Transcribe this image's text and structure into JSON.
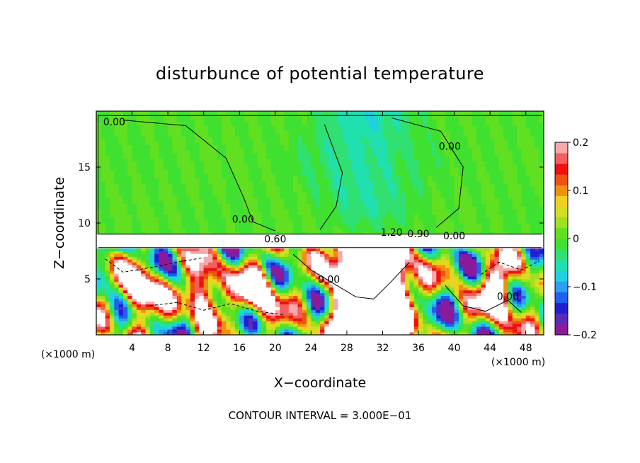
{
  "chart_data": {
    "type": "heatmap",
    "title": "disturbunce of potential temperature",
    "xlabel": "X−coordinate",
    "ylabel": "Z−coordinate",
    "x_unit_left": "(×1000 m)",
    "x_unit_right": "(×1000 m)",
    "footer": "CONTOUR INTERVAL = 3.000E−01",
    "xlim": [
      0,
      50
    ],
    "ylim": [
      0,
      20
    ],
    "x_ticks": [
      {
        "value": 4,
        "label": "4"
      },
      {
        "value": 8,
        "label": "8"
      },
      {
        "value": 12,
        "label": "12"
      },
      {
        "value": 16,
        "label": "16"
      },
      {
        "value": 20,
        "label": "20"
      },
      {
        "value": 24,
        "label": "24"
      },
      {
        "value": 28,
        "label": "28"
      },
      {
        "value": 32,
        "label": "32"
      },
      {
        "value": 36,
        "label": "36"
      },
      {
        "value": 40,
        "label": "40"
      },
      {
        "value": 44,
        "label": "44"
      },
      {
        "value": 48,
        "label": "48"
      }
    ],
    "y_ticks": [
      {
        "value": 5,
        "label": "5"
      },
      {
        "value": 10,
        "label": "10"
      },
      {
        "value": 15,
        "label": "15"
      }
    ],
    "colorbar": {
      "range": [
        -0.2,
        0.2
      ],
      "ticks": [
        {
          "value": 0.2,
          "label": "0.2"
        },
        {
          "value": 0.1,
          "label": "0.1"
        },
        {
          "value": 0,
          "label": "0"
        },
        {
          "value": -0.1,
          "label": "−0.1"
        },
        {
          "value": -0.2,
          "label": "−0.2"
        }
      ],
      "colors": [
        "#8b1a9c",
        "#5a2ab8",
        "#2020d0",
        "#2060f0",
        "#2aa0f0",
        "#20d0e0",
        "#20e0b0",
        "#30e070",
        "#40e030",
        "#60e020",
        "#a0e020",
        "#d0e020",
        "#f0d020",
        "#f09010",
        "#f05010",
        "#f01010",
        "#f06060",
        "#f8a8a8"
      ]
    },
    "contour_labels": [
      {
        "x": 2.0,
        "z": 19.0,
        "label": "0.00"
      },
      {
        "x": 39.5,
        "z": 16.8,
        "label": "0.00"
      },
      {
        "x": 16.4,
        "z": 10.3,
        "label": "0.00"
      },
      {
        "x": 20.0,
        "z": 8.5,
        "label": "0.60"
      },
      {
        "x": 33.0,
        "z": 9.1,
        "label": "1.20"
      },
      {
        "x": 36.0,
        "z": 9.0,
        "label": "0.90"
      },
      {
        "x": 40.0,
        "z": 8.8,
        "label": "0.00"
      },
      {
        "x": 26.0,
        "z": 4.9,
        "label": "0.00"
      },
      {
        "x": 46.0,
        "z": 3.4,
        "label": "0.00"
      }
    ],
    "fields": {
      "upper_layer": {
        "z_range": [
          9.0,
          20.0
        ],
        "base_value": 0.0,
        "cool_center_x": 30,
        "cool_value": -0.06
      },
      "stable_band": {
        "z_range": [
          7.8,
          9.0
        ],
        "value": "white (out of range)"
      },
      "lower_layer": {
        "z_range": [
          0.0,
          7.8
        ],
        "value_range": [
          -0.2,
          0.2
        ],
        "warm_plumes_x": [
          5,
          12,
          18,
          29,
          33,
          45
        ]
      }
    }
  }
}
